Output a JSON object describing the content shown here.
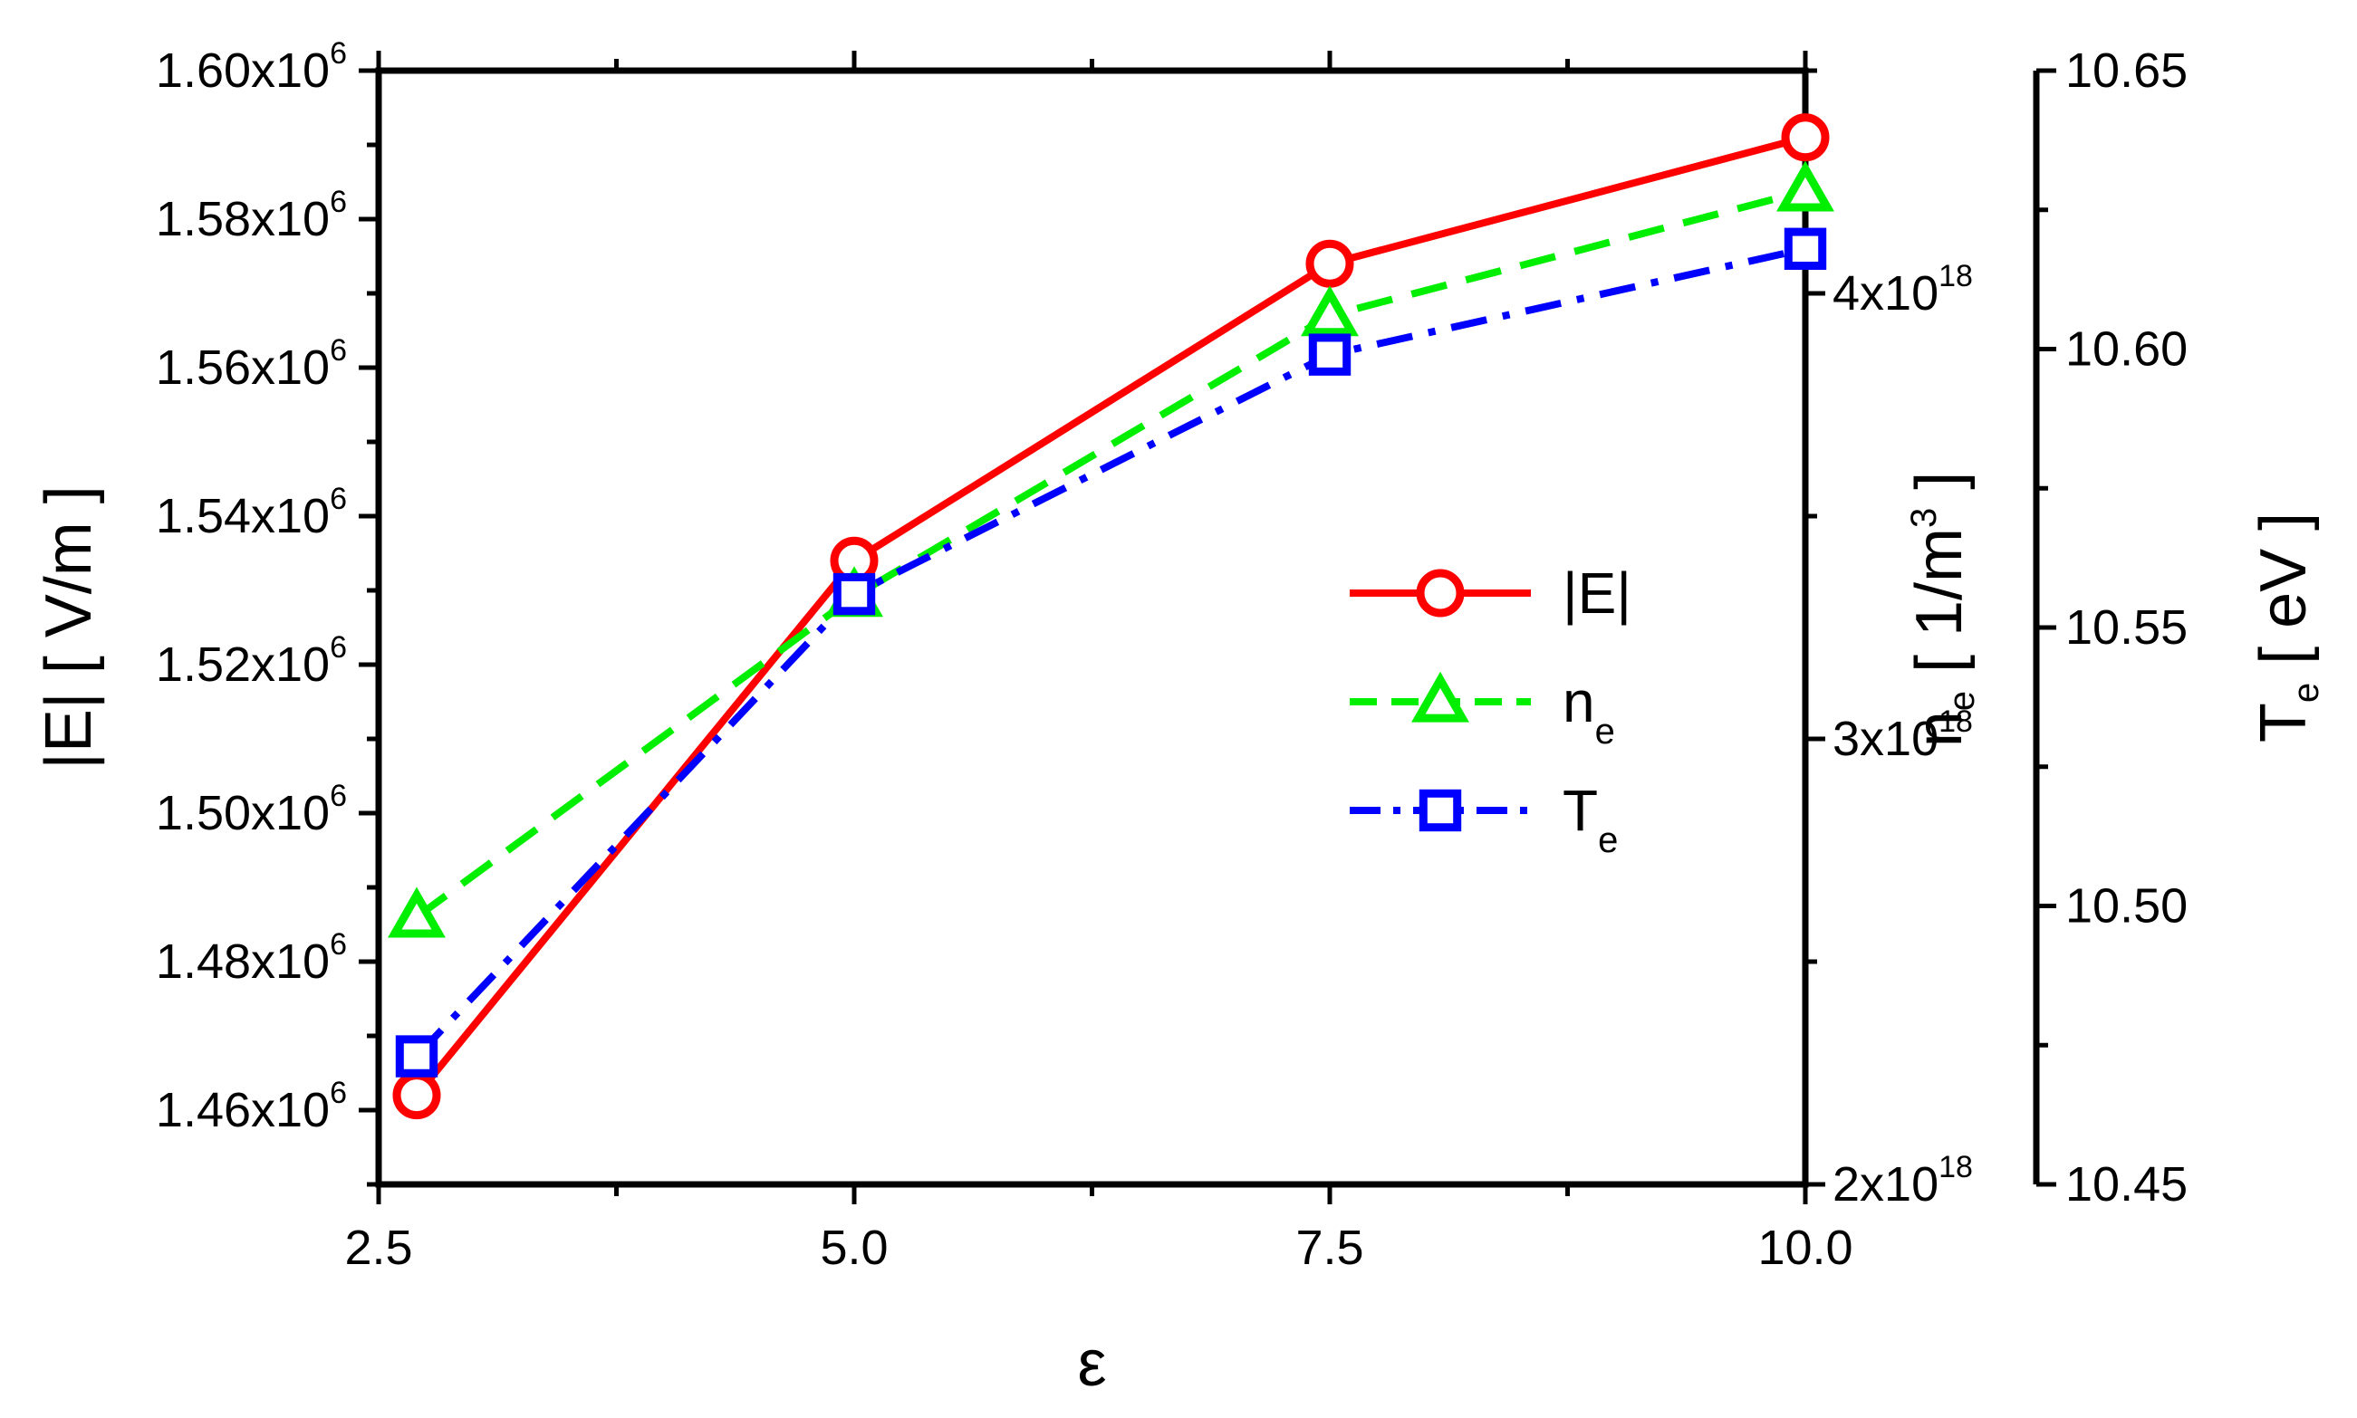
{
  "chart_data": {
    "type": "line",
    "x_axis": {
      "label": "ε",
      "min": 2.5,
      "max": 10.0,
      "ticks": [
        2.5,
        5.0,
        7.5,
        10.0
      ],
      "tick_labels": [
        "2.5",
        "5.0",
        "7.5",
        "10.0"
      ]
    },
    "y_axes": {
      "left": {
        "label_main": "|E| [ V/m ]",
        "min": 1450000,
        "max": 1600000,
        "ticks": [
          1460000,
          1480000,
          1500000,
          1520000,
          1540000,
          1560000,
          1580000,
          1600000
        ],
        "tick_labels": [
          {
            "mantissa": "1.46x10",
            "exp": "6"
          },
          {
            "mantissa": "1.48x10",
            "exp": "6"
          },
          {
            "mantissa": "1.50x10",
            "exp": "6"
          },
          {
            "mantissa": "1.52x10",
            "exp": "6"
          },
          {
            "mantissa": "1.54x10",
            "exp": "6"
          },
          {
            "mantissa": "1.56x10",
            "exp": "6"
          },
          {
            "mantissa": "1.58x10",
            "exp": "6"
          },
          {
            "mantissa": "1.60x10",
            "exp": "6"
          }
        ]
      },
      "right1": {
        "label_base": "n",
        "label_sub": "e",
        "label_rest": " [ 1/m",
        "label_sup": "3",
        "label_end": " ]",
        "min": 2000000000000000000,
        "max": 4500000000000000000,
        "ticks": [
          2000000000000000000,
          3000000000000000000,
          4000000000000000000
        ],
        "tick_labels": [
          {
            "mantissa": "2x10",
            "exp": "18"
          },
          {
            "mantissa": "3x10",
            "exp": "18"
          },
          {
            "mantissa": "4x10",
            "exp": "18"
          }
        ]
      },
      "right2": {
        "label_base": "T",
        "label_sub": "e",
        "label_rest": " [ eV ]",
        "min": 10.45,
        "max": 10.65,
        "ticks": [
          10.45,
          10.5,
          10.55,
          10.6,
          10.65
        ],
        "tick_labels": [
          "10.45",
          "10.50",
          "10.55",
          "10.60",
          "10.65"
        ]
      }
    },
    "series": [
      {
        "name": "|E|",
        "legend_base": "|E|",
        "legend_sub": "",
        "axis": "left",
        "color": "#ff0000",
        "marker": "circle",
        "dash": "solid",
        "x": [
          2.7,
          5.0,
          7.5,
          10.0
        ],
        "y": [
          1462000,
          1534000,
          1574000,
          1591000
        ]
      },
      {
        "name": "n_e",
        "legend_base": "n",
        "legend_sub": "e",
        "axis": "right1",
        "color": "#00ee00",
        "marker": "triangle",
        "dash": "dashed",
        "x": [
          2.7,
          5.0,
          7.5,
          10.0
        ],
        "y": [
          2600000000000000000,
          3320000000000000000,
          3950000000000000000,
          4230000000000000000
        ]
      },
      {
        "name": "T_e",
        "legend_base": "T",
        "legend_sub": "e",
        "axis": "right2",
        "color": "#0000ff",
        "marker": "square",
        "dash": "dashdot",
        "x": [
          2.7,
          5.0,
          7.5,
          10.0
        ],
        "y": [
          10.473,
          10.556,
          10.599,
          10.618
        ]
      }
    ],
    "legend_position": "center-right",
    "grid": false
  }
}
